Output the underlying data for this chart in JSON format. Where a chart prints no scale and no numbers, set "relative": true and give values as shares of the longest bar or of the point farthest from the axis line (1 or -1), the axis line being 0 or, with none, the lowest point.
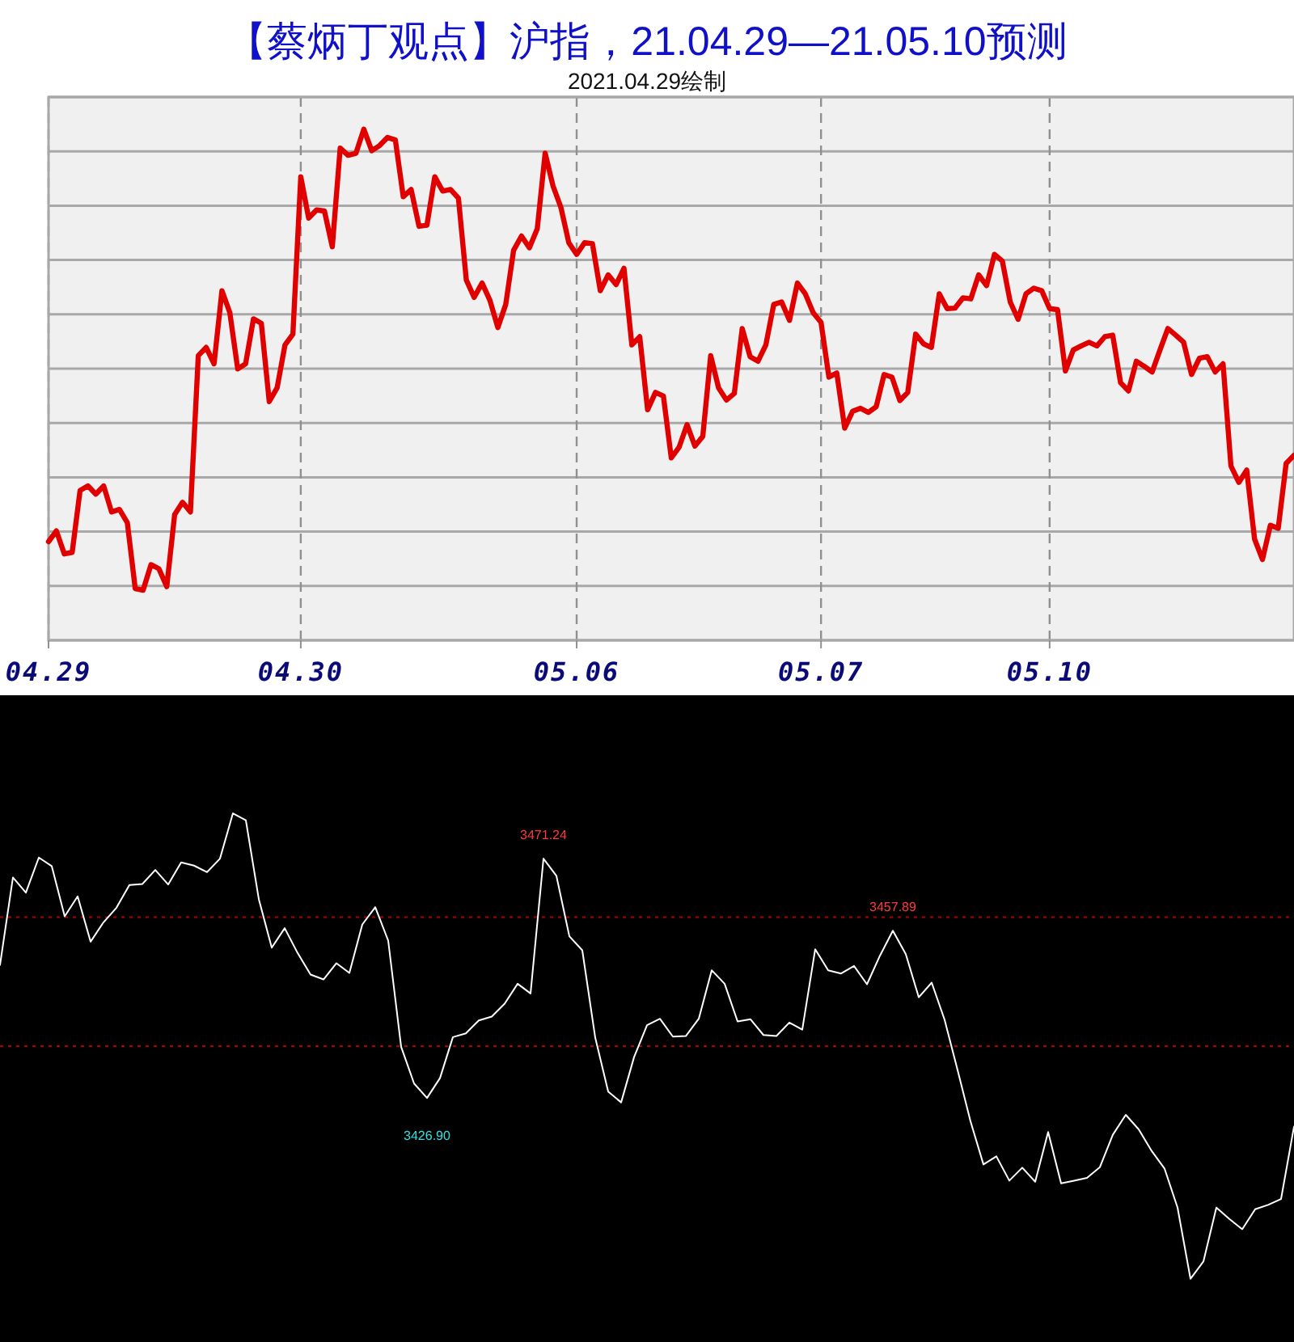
{
  "chart_data": [
    {
      "type": "line",
      "title": "【蔡炳丁观点】沪指，21.04.29—21.05.10预测",
      "subtitle": "2021.04.29绘制",
      "relative": true,
      "grid": true,
      "categories": [
        "04.29",
        null,
        null,
        null,
        null,
        null,
        null,
        null,
        null,
        null,
        null,
        null,
        null,
        null,
        null,
        null,
        null,
        null,
        null,
        null,
        null,
        null,
        null,
        null,
        null,
        null,
        null,
        null,
        null,
        null,
        null,
        null,
        "04.30",
        null,
        null,
        null,
        null,
        null,
        null,
        null,
        null,
        null,
        null,
        null,
        null,
        null,
        null,
        null,
        null,
        null,
        null,
        null,
        null,
        null,
        null,
        null,
        null,
        null,
        null,
        null,
        null,
        null,
        null,
        null,
        null,
        null,
        null,
        "05.06",
        null,
        null,
        null,
        null,
        null,
        null,
        null,
        null,
        null,
        null,
        null,
        null,
        null,
        null,
        null,
        null,
        null,
        null,
        null,
        null,
        null,
        null,
        null,
        null,
        null,
        null,
        null,
        null,
        null,
        null,
        "05.07",
        null,
        null,
        null,
        null,
        null,
        null,
        null,
        null,
        null,
        null,
        null,
        null,
        null,
        null,
        null,
        null,
        null,
        null,
        null,
        null,
        null,
        null,
        null,
        null,
        null,
        null,
        null,
        null,
        "05.10",
        null,
        null,
        null,
        null,
        null,
        null,
        null,
        null,
        null,
        null,
        null,
        null,
        null,
        null,
        null,
        null,
        null,
        null,
        null,
        null,
        null,
        null,
        null,
        null,
        null,
        null,
        null,
        null,
        null,
        null,
        null
      ],
      "series": [
        {
          "color": "#e00000",
          "values": [
            0.193,
            0.214,
            0.169,
            0.172,
            0.293,
            0.302,
            0.286,
            0.302,
            0.251,
            0.256,
            0.23,
            0.101,
            0.098,
            0.148,
            0.14,
            0.105,
            0.246,
            0.27,
            0.251,
            0.557,
            0.573,
            0.541,
            0.684,
            0.641,
            0.531,
            0.541,
            0.629,
            0.62,
            0.467,
            0.494,
            0.578,
            0.599,
            0.907,
            0.826,
            0.842,
            0.84,
            0.77,
            0.963,
            0.949,
            0.953,
            1.0,
            0.958,
            0.968,
            0.984,
            0.979,
            0.868,
            0.882,
            0.81,
            0.812,
            0.907,
            0.879,
            0.882,
            0.865,
            0.705,
            0.671,
            0.699,
            0.665,
            0.612,
            0.657,
            0.763,
            0.791,
            0.768,
            0.805,
            0.953,
            0.889,
            0.847,
            0.778,
            0.755,
            0.778,
            0.776,
            0.684,
            0.715,
            0.696,
            0.728,
            0.578,
            0.594,
            0.451,
            0.485,
            0.478,
            0.357,
            0.378,
            0.422,
            0.38,
            0.399,
            0.557,
            0.494,
            0.47,
            0.483,
            0.61,
            0.555,
            0.546,
            0.578,
            0.657,
            0.662,
            0.626,
            0.699,
            0.678,
            0.641,
            0.622,
            0.515,
            0.523,
            0.415,
            0.448,
            0.454,
            0.446,
            0.457,
            0.52,
            0.515,
            0.469,
            0.485,
            0.599,
            0.58,
            0.573,
            0.678,
            0.649,
            0.65,
            0.67,
            0.668,
            0.715,
            0.694,
            0.755,
            0.742,
            0.662,
            0.628,
            0.678,
            0.689,
            0.684,
            0.649,
            0.647,
            0.527,
            0.568,
            0.576,
            0.583,
            0.576,
            0.594,
            0.597,
            0.504,
            0.488,
            0.546,
            0.536,
            0.525,
            0.568,
            0.61,
            0.597,
            0.583,
            0.52,
            0.552,
            0.555,
            0.525,
            0.541,
            0.341,
            0.309,
            0.333,
            0.198,
            0.158,
            0.225,
            0.219,
            0.346,
            0.362
          ]
        }
      ]
    },
    {
      "type": "line",
      "ylim": [
        3381.7,
        3501.5
      ],
      "categories": [
        null,
        null,
        null,
        null,
        null,
        null,
        null,
        null,
        null,
        null,
        null,
        null,
        null,
        null,
        null,
        null,
        null,
        null,
        null,
        null,
        null,
        null,
        null,
        null,
        null,
        null,
        null,
        null,
        null,
        null,
        null,
        null,
        null,
        null,
        null,
        null,
        null,
        null,
        null,
        null,
        null,
        null,
        null,
        null,
        null,
        null,
        null,
        null,
        null,
        null,
        null,
        null,
        null,
        null,
        null,
        null,
        null,
        null,
        null,
        null,
        null,
        null,
        null,
        null,
        null,
        null,
        null,
        null,
        null,
        null,
        null,
        null,
        null,
        null,
        null,
        null,
        null,
        null,
        null,
        null,
        null,
        null,
        null,
        null,
        null,
        null,
        null,
        null,
        null,
        null,
        null,
        null,
        null,
        null,
        null,
        null,
        null,
        null,
        null,
        null,
        null
      ],
      "ref_lines": [
        {
          "axis": "y",
          "value": 3460.4,
          "color": "#b00000",
          "line_style": "dotted"
        },
        {
          "axis": "y",
          "value": 3436.5,
          "color": "#b00000",
          "line_style": "dotted"
        }
      ],
      "series": [
        {
          "color": "#ffffff",
          "values": [
            3451.56,
            3467.74,
            3464.94,
            3471.44,
            3469.84,
            3460.55,
            3464.24,
            3455.85,
            3459.45,
            3462.14,
            3466.34,
            3466.54,
            3469.14,
            3466.44,
            3470.54,
            3469.94,
            3468.74,
            3471.24,
            3479.63,
            3478.33,
            3463.74,
            3454.75,
            3458.35,
            3453.75,
            3449.76,
            3448.86,
            3451.86,
            3450.06,
            3459.05,
            3462.24,
            3456.05,
            3436.37,
            3429.58,
            3426.9,
            3430.58,
            3438.17,
            3438.87,
            3441.27,
            3441.97,
            3444.36,
            3448.06,
            3446.26,
            3471.24,
            3468.04,
            3456.85,
            3454.25,
            3438.07,
            3428.08,
            3426.08,
            3434.47,
            3440.37,
            3441.57,
            3438.27,
            3438.37,
            3441.57,
            3450.56,
            3448.06,
            3441.07,
            3441.47,
            3438.57,
            3438.37,
            3440.87,
            3439.57,
            3454.45,
            3450.56,
            3449.96,
            3451.36,
            3447.96,
            3453.25,
            3457.89,
            3453.55,
            3445.56,
            3448.26,
            3441.37,
            3432.08,
            3422.59,
            3414.59,
            3416.09,
            3411.59,
            3413.99,
            3411.39,
            3420.59,
            3411.09,
            3411.59,
            3412.09,
            3414.09,
            3420.09,
            3423.78,
            3421.09,
            3417.09,
            3413.79,
            3406.6,
            3393.41,
            3396.61,
            3406.6,
            3404.5,
            3402.6,
            3406.3,
            3407.1,
            3408.2,
            3421.59
          ],
          "value_labels": [
            null,
            null,
            null,
            null,
            null,
            null,
            null,
            null,
            null,
            null,
            null,
            null,
            null,
            null,
            null,
            null,
            null,
            null,
            null,
            null,
            null,
            null,
            null,
            null,
            null,
            null,
            null,
            null,
            null,
            null,
            null,
            null,
            null,
            "3426.90",
            null,
            null,
            null,
            null,
            null,
            null,
            null,
            null,
            "3471.24",
            null,
            null,
            null,
            null,
            null,
            null,
            null,
            null,
            null,
            null,
            null,
            null,
            null,
            null,
            null,
            null,
            null,
            null,
            null,
            null,
            null,
            null,
            null,
            null,
            null,
            null,
            "3457.89",
            null,
            null,
            null,
            null,
            null,
            null,
            null,
            null,
            null,
            null,
            null,
            null,
            null,
            null,
            null,
            null,
            null,
            null,
            null,
            null,
            null,
            null,
            null,
            null,
            null,
            null,
            null,
            null,
            null,
            null,
            null
          ]
        }
      ]
    }
  ]
}
